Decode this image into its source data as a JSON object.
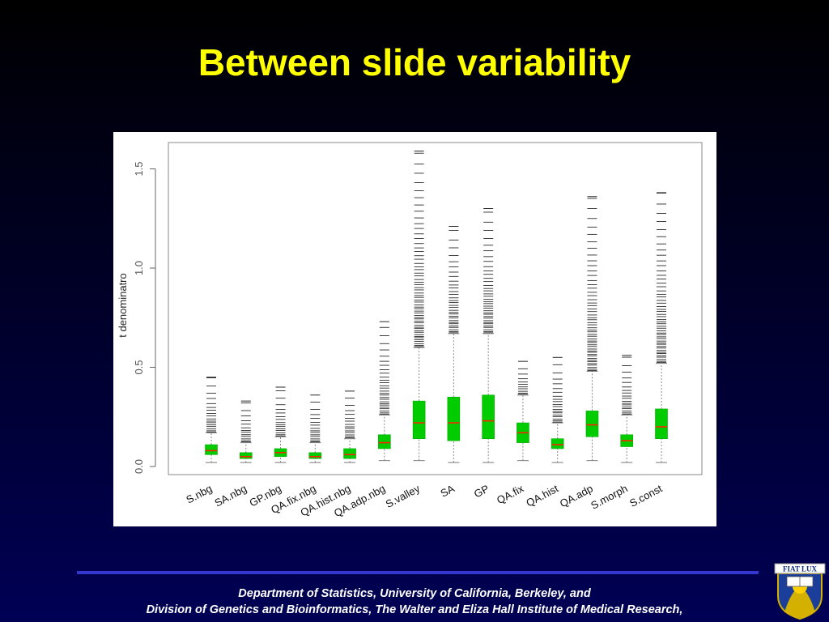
{
  "slide": {
    "title": "Between slide variability"
  },
  "footer": {
    "line1": "Department of Statistics, University of California, Berkeley,  and",
    "line2": "Division of Genetics and Bioinformatics, The Walter and Eliza Hall Institute of Medical Research,"
  },
  "logo": {
    "motto": "FIAT LUX",
    "icon": "university-crest-icon"
  },
  "colors": {
    "title": "#ffff00",
    "box_fill": "#00cc00",
    "median": "#ff2200",
    "rule": "#3535d0"
  },
  "chart_data": {
    "type": "boxplot",
    "title": "",
    "xlabel": "",
    "ylabel": "t denominatro",
    "ylim": [
      0,
      1.6
    ],
    "yticks": [
      0.0,
      0.5,
      1.0,
      1.5
    ],
    "ytick_labels": [
      "0.0",
      "0.5",
      "1.0",
      "1.5"
    ],
    "grid": false,
    "categories": [
      "S.nbg",
      "SA.nbg",
      "GP.nbg",
      "QA.fix.nbg",
      "QA.hist.nbg",
      "QA.adp.nbg",
      "S.valley",
      "SA",
      "GP",
      "QA.fix",
      "QA.hist",
      "QA.adp",
      "S.morph",
      "S.const"
    ],
    "boxes": [
      {
        "whisker_low": 0.02,
        "q1": 0.06,
        "median": 0.08,
        "q3": 0.11,
        "whisker_high": 0.17,
        "outlier_max": 0.45
      },
      {
        "whisker_low": 0.02,
        "q1": 0.04,
        "median": 0.05,
        "q3": 0.07,
        "whisker_high": 0.12,
        "outlier_max": 0.33
      },
      {
        "whisker_low": 0.02,
        "q1": 0.05,
        "median": 0.07,
        "q3": 0.09,
        "whisker_high": 0.15,
        "outlier_max": 0.4
      },
      {
        "whisker_low": 0.02,
        "q1": 0.04,
        "median": 0.05,
        "q3": 0.07,
        "whisker_high": 0.12,
        "outlier_max": 0.36
      },
      {
        "whisker_low": 0.02,
        "q1": 0.04,
        "median": 0.06,
        "q3": 0.09,
        "whisker_high": 0.14,
        "outlier_max": 0.38
      },
      {
        "whisker_low": 0.03,
        "q1": 0.09,
        "median": 0.12,
        "q3": 0.16,
        "whisker_high": 0.26,
        "outlier_max": 0.73
      },
      {
        "whisker_low": 0.03,
        "q1": 0.14,
        "median": 0.22,
        "q3": 0.33,
        "whisker_high": 0.6,
        "outlier_max": 1.59
      },
      {
        "whisker_low": 0.02,
        "q1": 0.13,
        "median": 0.22,
        "q3": 0.35,
        "whisker_high": 0.67,
        "outlier_max": 1.21
      },
      {
        "whisker_low": 0.02,
        "q1": 0.14,
        "median": 0.23,
        "q3": 0.36,
        "whisker_high": 0.67,
        "outlier_max": 1.3
      },
      {
        "whisker_low": 0.03,
        "q1": 0.12,
        "median": 0.17,
        "q3": 0.22,
        "whisker_high": 0.36,
        "outlier_max": 0.53
      },
      {
        "whisker_low": 0.02,
        "q1": 0.09,
        "median": 0.11,
        "q3": 0.14,
        "whisker_high": 0.22,
        "outlier_max": 0.55
      },
      {
        "whisker_low": 0.03,
        "q1": 0.15,
        "median": 0.21,
        "q3": 0.28,
        "whisker_high": 0.48,
        "outlier_max": 1.36
      },
      {
        "whisker_low": 0.02,
        "q1": 0.1,
        "median": 0.13,
        "q3": 0.16,
        "whisker_high": 0.26,
        "outlier_max": 0.56
      },
      {
        "whisker_low": 0.02,
        "q1": 0.14,
        "median": 0.2,
        "q3": 0.29,
        "whisker_high": 0.52,
        "outlier_max": 1.38
      }
    ]
  }
}
